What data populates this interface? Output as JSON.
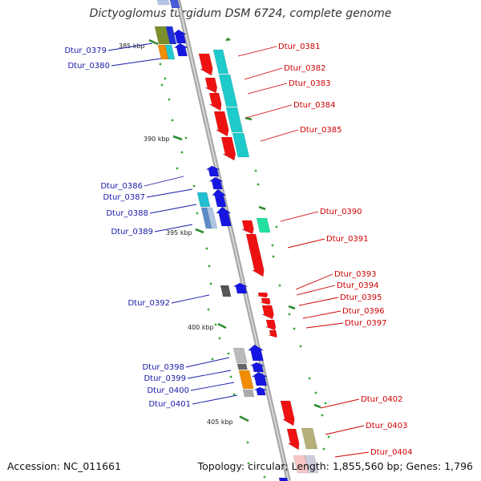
{
  "title": "Dictyoglomus turgidum DSM 6724, complete genome",
  "footer": {
    "accession": "Accession: NC_011661",
    "topology": "Topology: circular; Length: 1,855,560 bp; Genes: 1,796"
  },
  "colors": {
    "backbone": "#9a9a9a",
    "forward_label": "#cc0000",
    "reverse_label": "#1a1aaa",
    "tick": "#2e8b2e",
    "dot": "#33aa33"
  },
  "scale_labels": [
    "385 kbp",
    "390 kbp",
    "395 kbp",
    "400 kbp",
    "405 kbp"
  ],
  "forward_genes": [
    "Dtur_0381",
    "Dtur_0382",
    "Dtur_0383",
    "Dtur_0384",
    "Dtur_0385",
    "Dtur_0390",
    "Dtur_0391",
    "Dtur_0393",
    "Dtur_0394",
    "Dtur_0395",
    "Dtur_0396",
    "Dtur_0397",
    "Dtur_0402",
    "Dtur_0403",
    "Dtur_0404"
  ],
  "reverse_genes": [
    "Dtur_0379",
    "Dtur_0380",
    "Dtur_0386",
    "Dtur_0387",
    "Dtur_0388",
    "Dtur_0389",
    "Dtur_0392",
    "Dtur_0398",
    "Dtur_0399",
    "Dtur_0400",
    "Dtur_0401"
  ]
}
